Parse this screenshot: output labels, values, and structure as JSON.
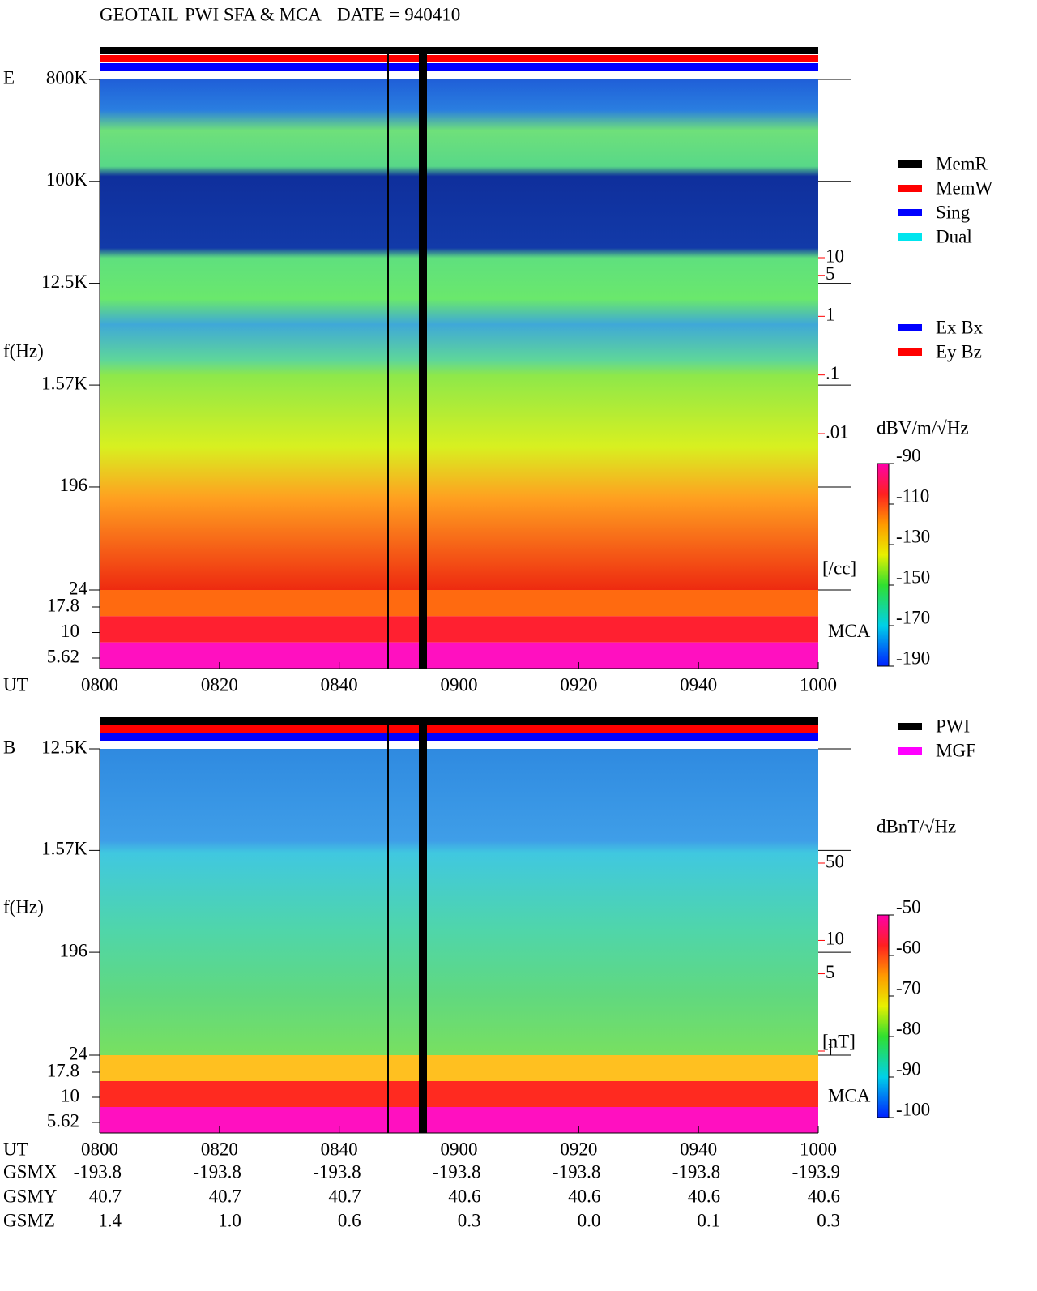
{
  "header": {
    "mission": "GEOTAIL",
    "instrument": "PWI SFA & MCA",
    "date": "DATE = 940410"
  },
  "chart_data": [
    {
      "type": "spectrogram",
      "component": "E",
      "ylabel": "f(Hz)",
      "xlabel": "UT",
      "categories": [
        "0800",
        "0820",
        "0840",
        "0900",
        "0920",
        "0940",
        "1000"
      ],
      "log_y": true,
      "ylim": [
        24,
        800000
      ],
      "yticks": [
        {
          "value": 800000,
          "label": "800K"
        },
        {
          "value": 100000,
          "label": "100K"
        },
        {
          "value": 12500,
          "label": "12.5K"
        },
        {
          "value": 1570,
          "label": "1.57K"
        },
        196,
        24
      ],
      "mca_label": "MCA",
      "mca_ticks": [
        17.8,
        10,
        5.62
      ],
      "y2label": "[/cc]",
      "y2lim": [
        0.01,
        10
      ],
      "y2color": "#ff0000",
      "y2ticks": [
        10,
        5,
        1,
        {
          "value": 0.1,
          "label": ".1"
        },
        {
          "value": 0.01,
          "label": ".01"
        }
      ],
      "colorbar": {
        "label": "dBV/m/√Hz",
        "lim": [
          -190,
          -90
        ],
        "ticks": [
          -90,
          -110,
          -130,
          -150,
          -170,
          -190
        ]
      },
      "legend": [
        {
          "name": "MemR",
          "color": "#000000"
        },
        {
          "name": "MemW",
          "color": "#ff0000"
        },
        {
          "name": "Sing",
          "color": "#0000ff"
        },
        {
          "name": "Dual",
          "color": "#00e5ee"
        }
      ],
      "legend2": [
        {
          "name": "Ex Bx",
          "color": "#0000ff"
        },
        {
          "name": "Ey Bz",
          "color": "#ff0000"
        }
      ]
    },
    {
      "type": "spectrogram",
      "component": "B",
      "ylabel": "f(Hz)",
      "xlabel": "UT",
      "categories": [
        "0800",
        "0820",
        "0840",
        "0900",
        "0920",
        "0940",
        "1000"
      ],
      "log_y": true,
      "ylim": [
        24,
        12500
      ],
      "yticks": [
        {
          "value": 12500,
          "label": "12.5K"
        },
        {
          "value": 1570,
          "label": "1.57K"
        },
        196,
        24
      ],
      "mca_label": "MCA",
      "mca_ticks": [
        17.8,
        10,
        5.62
      ],
      "y2label": "[nT]",
      "y2lim": [
        1,
        50
      ],
      "y2color": "#ff0000",
      "y2ticks": [
        50,
        10,
        5,
        1
      ],
      "colorbar": {
        "label": "dBnT/√Hz",
        "lim": [
          -100,
          -50
        ],
        "ticks": [
          -50,
          -60,
          -70,
          -80,
          -90,
          -100
        ]
      },
      "legend": [
        {
          "name": "PWI",
          "color": "#000000"
        },
        {
          "name": "MGF",
          "color": "#ff00ff"
        }
      ]
    }
  ],
  "orbit": {
    "rows": [
      {
        "label": "GSMX",
        "values": [
          "-193.8",
          "-193.8",
          "-193.8",
          "-193.8",
          "-193.8",
          "-193.8",
          "-193.9"
        ]
      },
      {
        "label": "GSMY",
        "values": [
          "40.7",
          "40.7",
          "40.7",
          "40.6",
          "40.6",
          "40.6",
          "40.6"
        ]
      },
      {
        "label": "GSMZ",
        "values": [
          "1.4",
          "1.0",
          "0.6",
          "0.3",
          "0.0",
          "0.1",
          "0.3"
        ]
      }
    ]
  }
}
